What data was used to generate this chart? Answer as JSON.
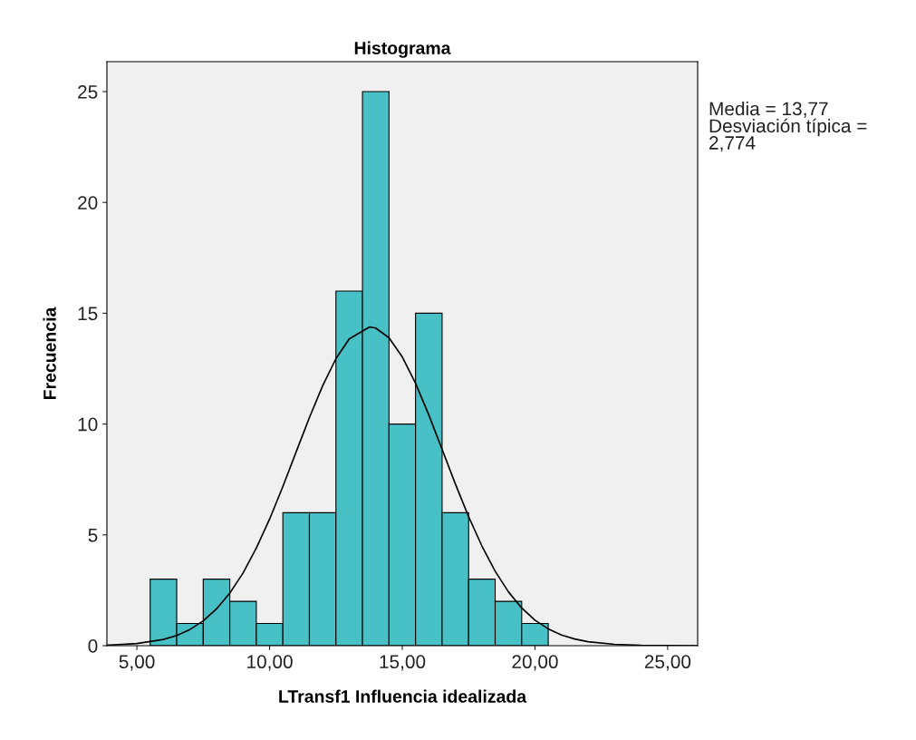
{
  "chart_data": {
    "type": "histogram",
    "title": "Histograma",
    "xlabel": "LTransf1 Influencia idealizada",
    "ylabel": "Frecuencia",
    "bins": [
      5.5,
      6.5,
      7.5,
      8.5,
      9.5,
      10.5,
      11.5,
      12.5,
      13.5,
      14.5,
      15.5,
      16.5,
      17.5,
      18.5,
      19.5,
      20.5
    ],
    "values": [
      3,
      1,
      3,
      2,
      1,
      6,
      6,
      16,
      25,
      10,
      15,
      6,
      3,
      2,
      1
    ],
    "color": "#48c1c6",
    "series": [
      {
        "type": "line",
        "color": "#000000",
        "x": [
          3.9,
          4,
          5,
          6,
          6.5,
          7,
          7.5,
          8,
          8.5,
          9,
          9.5,
          10,
          10.5,
          11,
          11.5,
          12,
          12.5,
          13,
          13.77,
          14,
          14.5,
          15,
          15.5,
          16,
          16.5,
          17,
          17.5,
          18,
          18.5,
          19,
          19.5,
          20,
          20.5,
          21,
          21.5,
          22,
          23,
          24,
          26.1
        ],
        "values": [
          0.03,
          0.03,
          0.1,
          0.28,
          0.46,
          0.73,
          1.12,
          1.66,
          2.37,
          3.28,
          4.4,
          5.71,
          7.18,
          8.74,
          10.29,
          11.73,
          12.95,
          13.84,
          14.38,
          14.33,
          13.89,
          13.03,
          11.84,
          10.41,
          8.86,
          7.3,
          5.82,
          4.5,
          3.36,
          2.43,
          1.7,
          1.15,
          0.76,
          0.48,
          0.3,
          0.18,
          0.06,
          0.02,
          0
        ]
      }
    ],
    "xlim": [
      3.87,
      26.13
    ],
    "ylim": [
      0,
      26.35
    ],
    "xticks": [
      {
        "value": 5,
        "label": "5,00"
      },
      {
        "value": 10,
        "label": "10,00"
      },
      {
        "value": 15,
        "label": "15,00"
      },
      {
        "value": 20,
        "label": "20,00"
      },
      {
        "value": 25,
        "label": "25,00"
      }
    ],
    "yticks": [
      0,
      5,
      10,
      15,
      20,
      25
    ],
    "grid": false,
    "annotations": [
      "Media = 13,77\nDesviación típica =\n2,774"
    ]
  }
}
